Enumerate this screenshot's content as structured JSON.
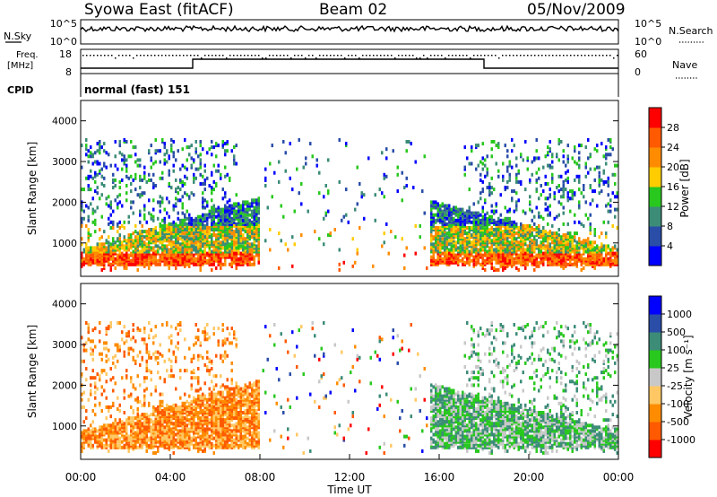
{
  "header": {
    "title": "Syowa East (fitACF)",
    "beam": "Beam 02",
    "date": "05/Nov/2009"
  },
  "noise_panel": {
    "left_label": "N.Sky",
    "right_label": "N.Search",
    "left_ticks": [
      "10^5",
      "10^0"
    ],
    "right_ticks": [
      "10^5",
      "10^0"
    ]
  },
  "freq_panel": {
    "left_label_line1": "Freq.",
    "left_label_line2": "[MHz]",
    "right_label": "Nave",
    "left_ticks": [
      "18",
      "8"
    ],
    "right_ticks": [
      "60",
      "0"
    ]
  },
  "cpid": {
    "label": "CPID",
    "mode": "normal (fast) 151"
  },
  "x_axis": {
    "label": "Time UT",
    "ticks": [
      "00:00",
      "04:00",
      "08:00",
      "12:00",
      "16:00",
      "20:00",
      "00:00"
    ]
  },
  "colors": {
    "power_scale": [
      "#0000ff",
      "#2a4da8",
      "#3c8c78",
      "#28c81e",
      "#ffcc00",
      "#ff8c00",
      "#ff5a00",
      "#ff0000"
    ],
    "velocity_scale": [
      "#ff0000",
      "#ff5a00",
      "#ff8c00",
      "#ffc864",
      "#c8c8c8",
      "#28c81e",
      "#3c8c78",
      "#2a4da8",
      "#0000ff"
    ]
  },
  "chart_data": [
    {
      "type": "heatmap",
      "title": "",
      "xlabel": "Time UT",
      "ylabel": "Slant Range [km]",
      "xlim": [
        "00:00",
        "24:00"
      ],
      "ylim": [
        180,
        4500
      ],
      "y_ticks": [
        1000,
        2000,
        3000,
        4000
      ],
      "colorbar": {
        "label": "Power [dB]",
        "range": [
          0,
          32
        ],
        "ticks": [
          "4",
          "8",
          "12",
          "16",
          "20",
          "24",
          "28"
        ]
      },
      "echo_regions": [
        {
          "start": "00:00",
          "end": "08:00",
          "range_km": [
            500,
            2100
          ],
          "level": "strong"
        },
        {
          "start": "08:00",
          "end": "15:00",
          "range_km": [
            500,
            3500
          ],
          "level": "sparse"
        },
        {
          "start": "15:00",
          "end": "24:00",
          "range_km": [
            500,
            2200
          ],
          "level": "strong"
        }
      ]
    },
    {
      "type": "heatmap",
      "title": "",
      "xlabel": "Time UT",
      "ylabel": "Slant Range [km]",
      "xlim": [
        "00:00",
        "24:00"
      ],
      "ylim": [
        180,
        4500
      ],
      "y_ticks": [
        1000,
        2000,
        3000,
        4000
      ],
      "colorbar": {
        "label": "Velocity [m s⁻¹]",
        "ticks": [
          "1000",
          "500",
          "100",
          "25",
          "-25",
          "-100",
          "-500",
          "-1000"
        ]
      },
      "echo_regions": [
        {
          "start": "00:00",
          "end": "08:00",
          "range_km": [
            500,
            2100
          ],
          "velocity": "negative"
        },
        {
          "start": "08:00",
          "end": "15:00",
          "range_km": [
            500,
            3500
          ],
          "velocity": "mixed"
        },
        {
          "start": "15:00",
          "end": "24:00",
          "range_km": [
            500,
            2200
          ],
          "velocity": "positive"
        }
      ]
    }
  ]
}
